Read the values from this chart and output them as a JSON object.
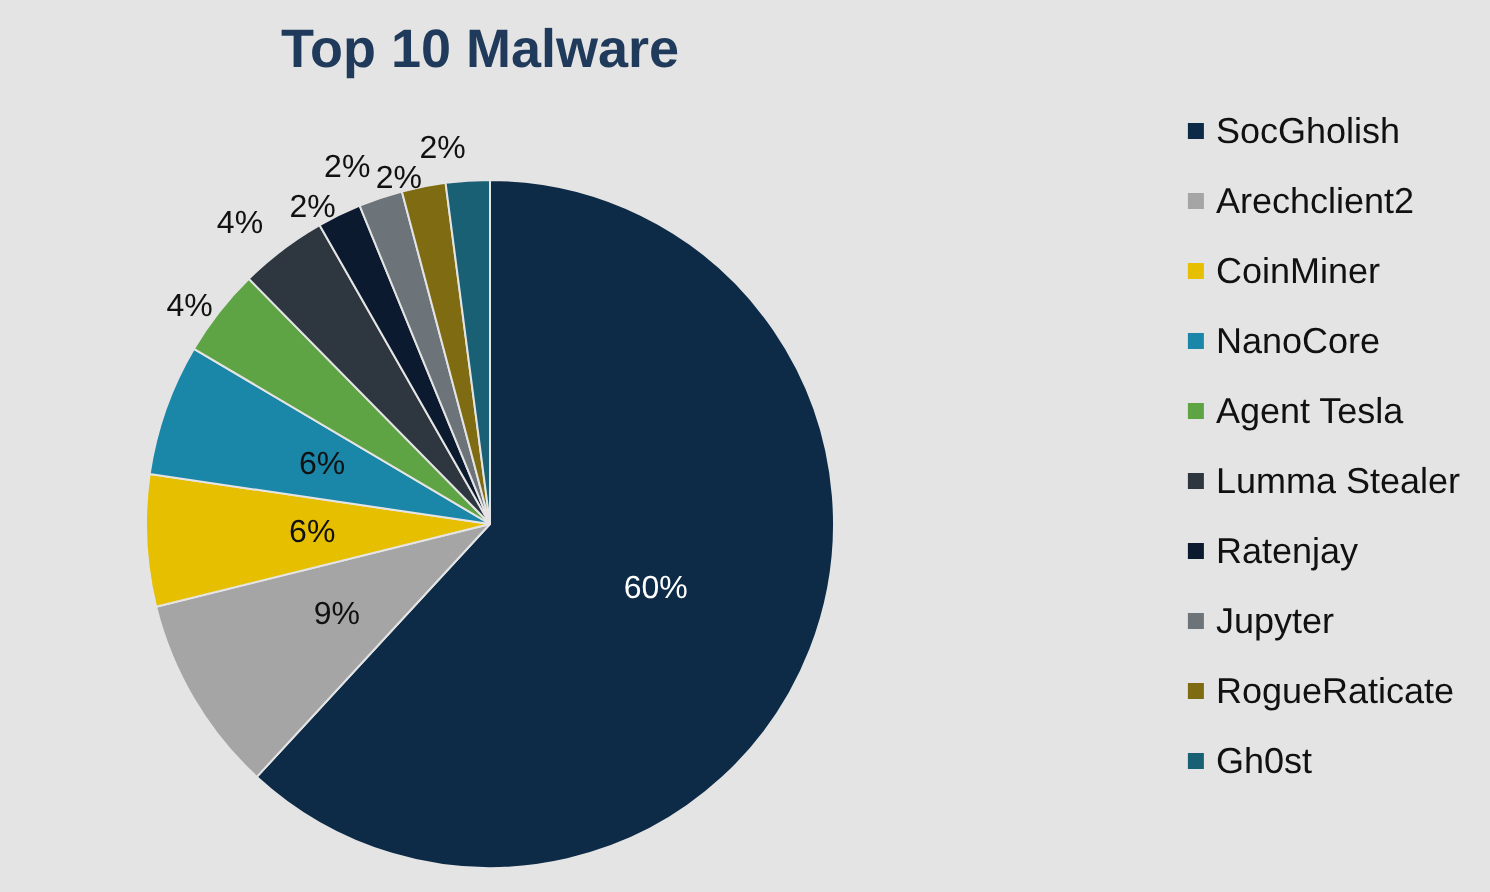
{
  "chart_data": {
    "type": "pie",
    "title": "Top 10 Malware",
    "categories": [
      "SocGholish",
      "Arechclient2",
      "CoinMiner",
      "NanoCore",
      "Agent Tesla",
      "Lumma Stealer",
      "Ratenjay",
      "Jupyter",
      "RogueRaticate",
      "Gh0st"
    ],
    "values": [
      60,
      9,
      6,
      6,
      4,
      4,
      2,
      2,
      2,
      2
    ],
    "value_labels": [
      "60%",
      "9%",
      "6%",
      "6%",
      "4%",
      "4%",
      "2%",
      "2%",
      "2%",
      "2%"
    ],
    "colors": [
      "#0d2b47",
      "#a5a5a5",
      "#e6bf00",
      "#1a86a8",
      "#5fa444",
      "#2e3640",
      "#0c1a30",
      "#6c7379",
      "#7e6b12",
      "#1a6075"
    ],
    "legend": "right"
  }
}
